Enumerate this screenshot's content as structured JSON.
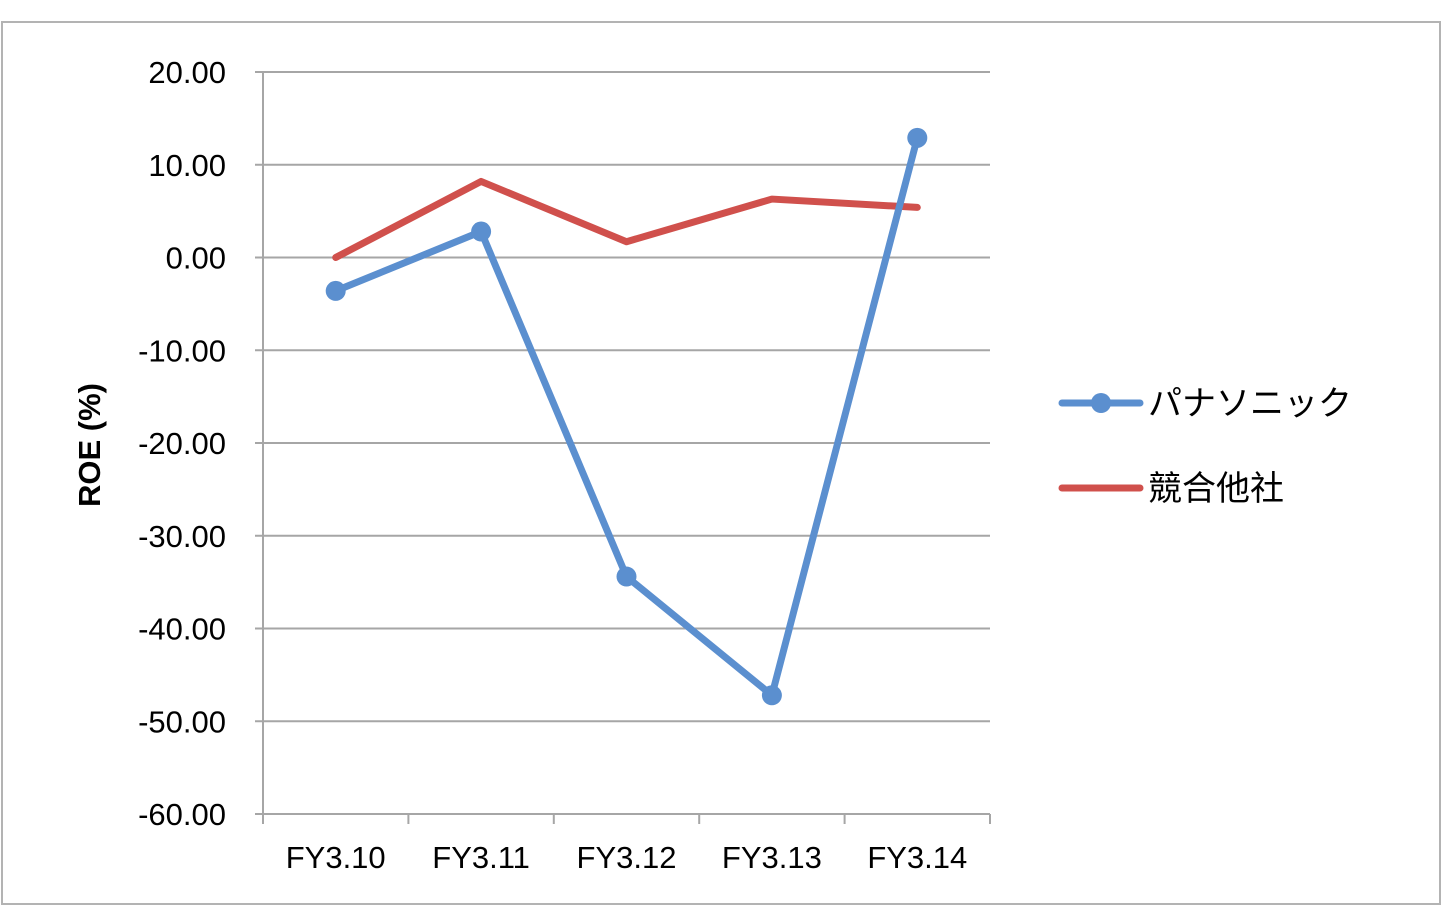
{
  "chart_data": {
    "type": "line",
    "categories": [
      "FY3.10",
      "FY3.11",
      "FY3.12",
      "FY3.13",
      "FY3.14"
    ],
    "ylabel": "ROE (%)",
    "xlabel": "",
    "ylim": [
      -60,
      20
    ],
    "y_ticks": [
      "20.00",
      "10.00",
      "0.00",
      "-10.00",
      "-20.00",
      "-30.00",
      "-40.00",
      "-50.00",
      "-60.00"
    ],
    "grid": true,
    "legend_position": "right",
    "series": [
      {
        "name": "パナソニック",
        "values": [
          -3.6,
          2.8,
          -34.4,
          -47.2,
          12.9
        ],
        "color": "#5b8fcf",
        "markers": true
      },
      {
        "name": "競合他社",
        "values": [
          0.0,
          8.2,
          1.7,
          6.3,
          5.4
        ],
        "color": "#d0504c",
        "markers": false
      }
    ]
  }
}
